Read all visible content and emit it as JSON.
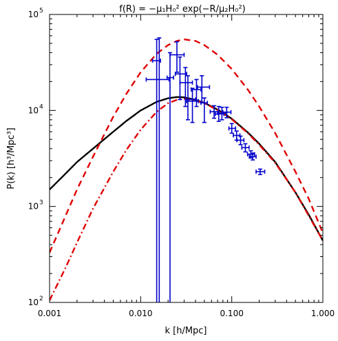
{
  "chart_data": {
    "type": "line",
    "title": "f(R) = −μ₁H₀² exp(−R/μ₂H₀²)",
    "xlabel": "k [h/Mpc]",
    "ylabel": "P(k) [h³/Mpc³]",
    "x_scale": "log",
    "y_scale": "log",
    "xlim": [
      0.001,
      1.0
    ],
    "ylim": [
      100,
      100000
    ],
    "grid": false,
    "legend": "none",
    "x_ticks": [
      {
        "value": 0.001,
        "label": "0.001"
      },
      {
        "value": 0.01,
        "label": "0.010"
      },
      {
        "value": 0.1,
        "label": "0.100"
      },
      {
        "value": 1.0,
        "label": "1.000"
      }
    ],
    "y_ticks": [
      {
        "value": 100,
        "base": "10",
        "exp": "2"
      },
      {
        "value": 1000,
        "base": "10",
        "exp": "3"
      },
      {
        "value": 10000,
        "base": "10",
        "exp": "4"
      },
      {
        "value": 100000,
        "base": "10",
        "exp": "5"
      }
    ],
    "series": [
      {
        "style": "solid",
        "color": "#000000",
        "x": [
          0.001,
          0.0015,
          0.002,
          0.003,
          0.005,
          0.007,
          0.01,
          0.015,
          0.02,
          0.025,
          0.03,
          0.04,
          0.05,
          0.07,
          0.1,
          0.15,
          0.2,
          0.3,
          0.5,
          0.7,
          1.0
        ],
        "y": [
          1500,
          2200,
          2900,
          4000,
          6000,
          7800,
          10000,
          12300,
          13400,
          13800,
          13700,
          12900,
          12000,
          10200,
          8200,
          5900,
          4500,
          2900,
          1400,
          820,
          440
        ]
      },
      {
        "style": "dashed",
        "color": "#e00000",
        "x": [
          0.001,
          0.0015,
          0.002,
          0.003,
          0.005,
          0.007,
          0.01,
          0.015,
          0.02,
          0.025,
          0.03,
          0.04,
          0.05,
          0.07,
          0.1,
          0.15,
          0.2,
          0.3,
          0.5,
          0.7,
          1.0
        ],
        "y": [
          330,
          800,
          1500,
          3300,
          8600,
          15000,
          25000,
          39000,
          48000,
          53000,
          55000,
          53000,
          48000,
          38000,
          27000,
          16500,
          11000,
          5800,
          2300,
          1200,
          530
        ]
      },
      {
        "style": "dash-dot",
        "color": "#e00000",
        "x": [
          0.001,
          0.0015,
          0.002,
          0.003,
          0.005,
          0.007,
          0.01,
          0.015,
          0.02,
          0.025,
          0.03,
          0.04,
          0.05,
          0.07,
          0.1,
          0.15,
          0.2,
          0.3,
          0.5,
          0.7,
          1.0
        ],
        "y": [
          105,
          230,
          420,
          950,
          2300,
          3900,
          6300,
          9700,
          11900,
          12900,
          13200,
          12700,
          11900,
          10100,
          8100,
          5800,
          4400,
          2850,
          1400,
          800,
          440
        ]
      }
    ],
    "error_points": {
      "color": "#0000cc",
      "points": [
        {
          "x": 0.015,
          "y": 33000,
          "xerr": [
            0.0135,
            0.0165
          ],
          "yerr": [
            100,
            55000
          ]
        },
        {
          "x": 0.016,
          "y": 21000,
          "xerr": [
            0.0115,
            0.0205
          ],
          "yerr": [
            100,
            57000
          ]
        },
        {
          "x": 0.021,
          "y": 22000,
          "xerr": [
            0.0195,
            0.023
          ],
          "yerr": [
            100,
            40000
          ]
        },
        {
          "x": 0.025,
          "y": 38000,
          "xerr": [
            0.021,
            0.03
          ],
          "yerr": [
            25000,
            52000
          ]
        },
        {
          "x": 0.027,
          "y": 24000,
          "xerr": [
            0.024,
            0.032
          ],
          "yerr": [
            13000,
            36000
          ]
        },
        {
          "x": 0.031,
          "y": 19500,
          "xerr": [
            0.027,
            0.037
          ],
          "yerr": [
            11000,
            28000
          ]
        },
        {
          "x": 0.033,
          "y": 13000,
          "xerr": [
            0.031,
            0.04
          ],
          "yerr": [
            8000,
            23000
          ]
        },
        {
          "x": 0.041,
          "y": 16500,
          "xerr": [
            0.036,
            0.046
          ],
          "yerr": [
            11000,
            21000
          ]
        },
        {
          "x": 0.047,
          "y": 17500,
          "xerr": [
            0.042,
            0.057
          ],
          "yerr": [
            12000,
            23000
          ]
        },
        {
          "x": 0.037,
          "y": 12500,
          "xerr": [
            0.032,
            0.043
          ],
          "yerr": [
            7500,
            17000
          ]
        },
        {
          "x": 0.05,
          "y": 12000,
          "xerr": [
            0.046,
            0.054
          ],
          "yerr": [
            7500,
            13500
          ]
        },
        {
          "x": 0.064,
          "y": 9700,
          "xerr": [
            0.058,
            0.072
          ],
          "yerr": [
            8300,
            11200
          ]
        },
        {
          "x": 0.072,
          "y": 9200,
          "xerr": [
            0.066,
            0.082
          ],
          "yerr": [
            7700,
            11000
          ]
        },
        {
          "x": 0.078,
          "y": 9400,
          "xerr": [
            0.07,
            0.088
          ],
          "yerr": [
            8000,
            10800
          ]
        },
        {
          "x": 0.088,
          "y": 9600,
          "xerr": [
            0.08,
            0.098
          ],
          "yerr": [
            8400,
            10800
          ]
        },
        {
          "x": 0.1,
          "y": 6500,
          "xerr": [
            0.093,
            0.11
          ],
          "yerr": [
            5800,
            7300
          ]
        },
        {
          "x": 0.113,
          "y": 5500,
          "xerr": [
            0.104,
            0.123
          ],
          "yerr": [
            4900,
            6100
          ]
        },
        {
          "x": 0.125,
          "y": 4900,
          "xerr": [
            0.114,
            0.136
          ],
          "yerr": [
            4400,
            5400
          ]
        },
        {
          "x": 0.141,
          "y": 4100,
          "xerr": [
            0.129,
            0.155
          ],
          "yerr": [
            3700,
            4500
          ]
        },
        {
          "x": 0.162,
          "y": 3500,
          "xerr": [
            0.149,
            0.178
          ],
          "yerr": [
            3200,
            3800
          ]
        },
        {
          "x": 0.17,
          "y": 3300,
          "xerr": [
            0.156,
            0.185
          ],
          "yerr": [
            3050,
            3600
          ]
        },
        {
          "x": 0.205,
          "y": 2300,
          "xerr": [
            0.185,
            0.23
          ],
          "yerr": [
            2150,
            2450
          ]
        }
      ]
    }
  }
}
